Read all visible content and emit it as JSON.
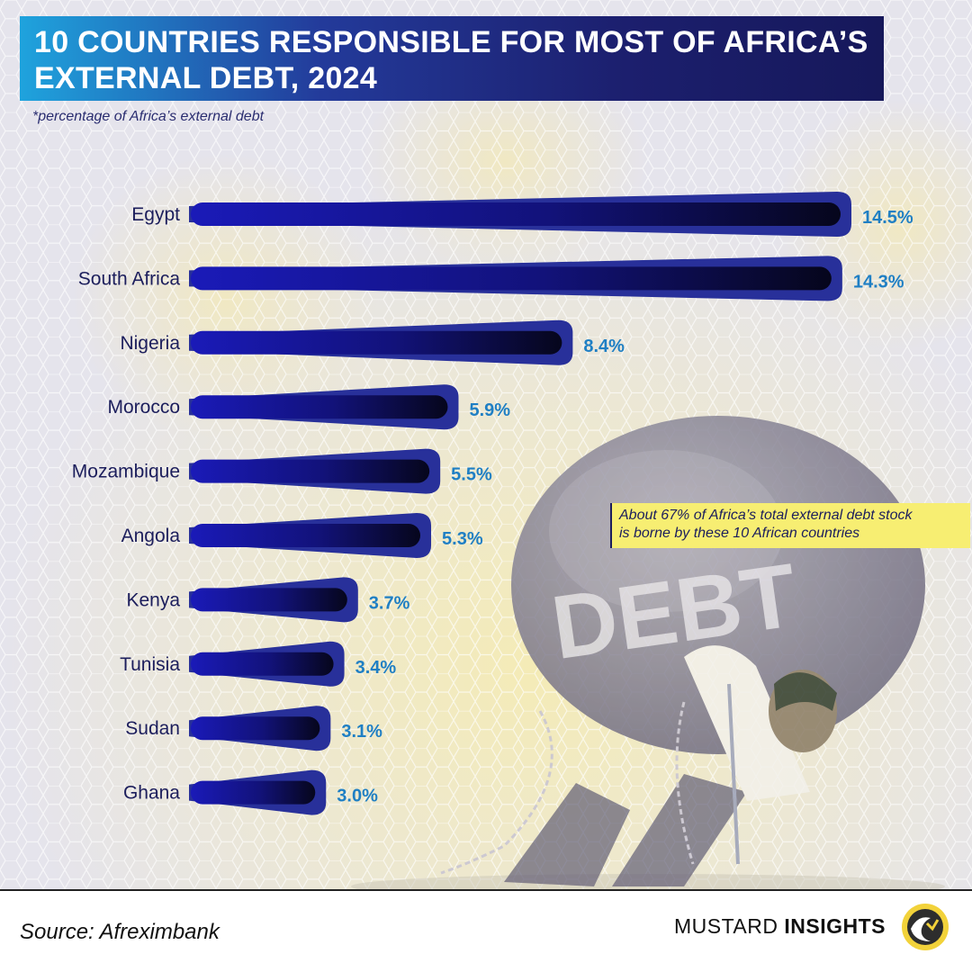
{
  "header": {
    "title_line1": "10 COUNTRIES RESPONSIBLE FOR MOST OF AFRICA’S",
    "title_line2": "EXTERNAL DEBT, 2024",
    "subtitle": "*percentage of Africa’s external debt"
  },
  "annotation": {
    "line1": "About 67% of Africa’s total external debt stock",
    "line2": "is borne by these 10 African countries"
  },
  "illustration": {
    "boulder_text": "DEBT"
  },
  "footer": {
    "source": "Source: Afreximbank",
    "brand_part1": "MUSTARD",
    "brand_part2": "INSIGHTS"
  },
  "colors": {
    "bar_dark": "#0b0b2e",
    "bar_mid": "#1a1ab8",
    "bar_outline": "#28309a",
    "value_label": "#1f7fc4",
    "title_start": "#1fa3dd",
    "title_end": "#16185a",
    "annotation_bg": "#f7ee72"
  },
  "chart_data": {
    "type": "bar",
    "orientation": "horizontal",
    "title": "10 COUNTRIES RESPONSIBLE FOR MOST OF AFRICA’S EXTERNAL DEBT, 2024",
    "subtitle": "*percentage of Africa’s external debt",
    "categories": [
      "Egypt",
      "South Africa",
      "Nigeria",
      "Morocco",
      "Mozambique",
      "Angola",
      "Kenya",
      "Tunisia",
      "Sudan",
      "Ghana"
    ],
    "values": [
      14.5,
      14.3,
      8.4,
      5.9,
      5.5,
      5.3,
      3.7,
      3.4,
      3.1,
      3.0
    ],
    "value_labels": [
      "14.5%",
      "14.3%",
      "8.4%",
      "5.9%",
      "5.5%",
      "5.3%",
      "3.7%",
      "3.4%",
      "3.1%",
      "3.0%"
    ],
    "unit": "%",
    "xlim": [
      0,
      14.5
    ]
  }
}
